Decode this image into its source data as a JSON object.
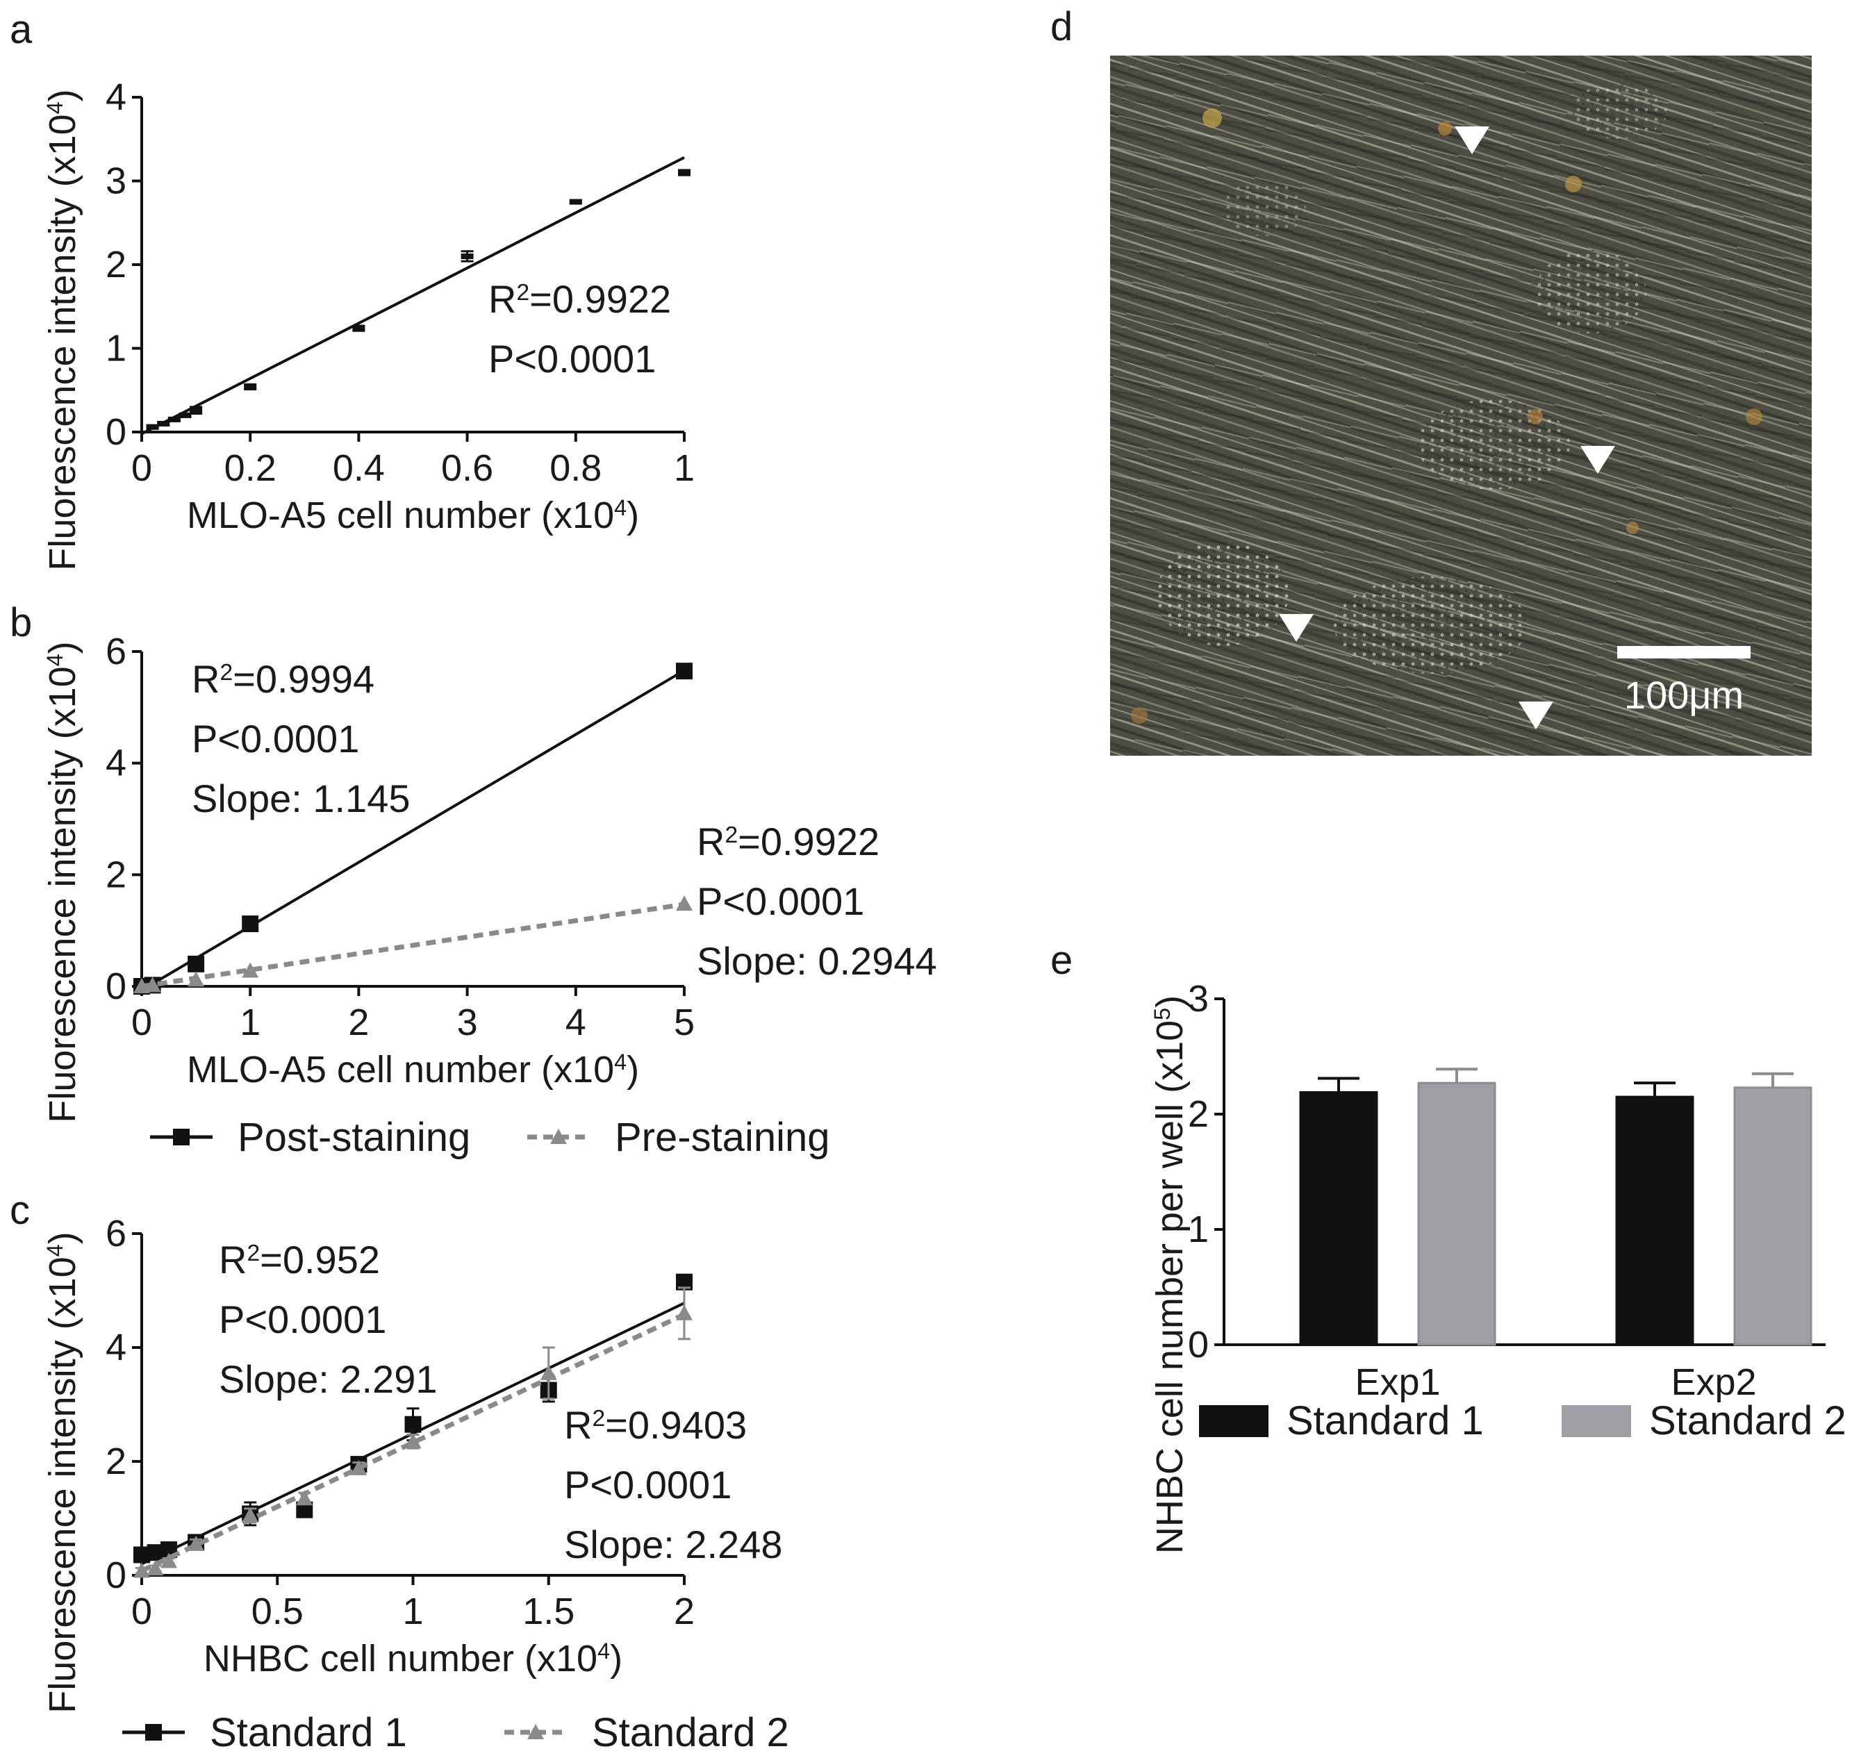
{
  "panels": {
    "a": {
      "letter": "a"
    },
    "b": {
      "letter": "b"
    },
    "c": {
      "letter": "c"
    },
    "d": {
      "letter": "d",
      "scale_bar_label": "100μm"
    },
    "e": {
      "letter": "e"
    }
  },
  "colors": {
    "black": "#111111",
    "gray_line": "#8a8a8a",
    "gray_bar": "#a09ea2",
    "micrograph_base": "#5a5a4e"
  },
  "chart_data": [
    {
      "panel": "a",
      "type": "scatter",
      "xlabel": "MLO-A5 cell number (x10^4)",
      "ylabel": "Fluorescence intensity (x10^4)",
      "xlim": [
        0,
        1
      ],
      "ylim": [
        0,
        4
      ],
      "xticks": [
        "0",
        "0.2",
        "0.4",
        "0.6",
        "0.8",
        "1"
      ],
      "yticks": [
        "0",
        "1",
        "2",
        "3",
        "4"
      ],
      "series": [
        {
          "marker": "dash",
          "x": [
            0.02,
            0.04,
            0.06,
            0.08,
            0.1,
            0.2,
            0.4,
            0.6,
            0.8,
            1.0
          ],
          "y": [
            0.06,
            0.1,
            0.15,
            0.2,
            0.26,
            0.54,
            1.24,
            2.1,
            2.75,
            3.1
          ],
          "error": [
            0.02,
            0.02,
            0.02,
            0.02,
            0.04,
            0.03,
            0.03,
            0.06,
            0.02,
            0.03
          ],
          "fit": {
            "x": [
              0,
              1
            ],
            "y": [
              -0.02,
              3.28
            ]
          }
        }
      ],
      "annotations": [
        {
          "r2": "=0.9922",
          "p": "P<0.0001"
        }
      ]
    },
    {
      "panel": "b",
      "type": "line",
      "xlabel": "MLO-A5 cell number (x10^4)",
      "ylabel": "Fluorescence intensity (x10^4)",
      "xlim": [
        0,
        5
      ],
      "ylim": [
        0,
        6
      ],
      "xticks": [
        "0",
        "1",
        "2",
        "3",
        "4",
        "5"
      ],
      "yticks": [
        "0",
        "2",
        "4",
        "6"
      ],
      "series": [
        {
          "name": "Post-staining",
          "marker": "square",
          "x": [
            0,
            0.1,
            0.5,
            1,
            5
          ],
          "y": [
            0.0,
            0.02,
            0.4,
            1.12,
            5.65
          ],
          "fit": {
            "x": [
              0,
              5
            ],
            "y": [
              -0.07,
              5.66
            ]
          }
        },
        {
          "name": "Pre-staining",
          "marker": "triangle",
          "x": [
            0,
            0.1,
            0.5,
            1,
            5
          ],
          "y": [
            0.0,
            0.02,
            0.12,
            0.28,
            1.48
          ],
          "fit": {
            "x": [
              0,
              5
            ],
            "y": [
              0.0,
              1.47
            ]
          }
        }
      ],
      "annotations": [
        {
          "r2": "=0.9994",
          "p": "P<0.0001",
          "slope": "Slope: 1.145"
        },
        {
          "r2": "=0.9922",
          "p": "P<0.0001",
          "slope": "Slope: 0.2944"
        }
      ]
    },
    {
      "panel": "c",
      "type": "line",
      "xlabel": "NHBC cell number (x10^4)",
      "ylabel": "Fluorescence intensity (x10^4)",
      "xlim": [
        0,
        2
      ],
      "ylim": [
        0,
        6
      ],
      "xticks": [
        "0",
        "0.5",
        "1",
        "1.5",
        "2"
      ],
      "yticks": [
        "0",
        "2",
        "4",
        "6"
      ],
      "series": [
        {
          "name": "Standard 1",
          "marker": "square",
          "x": [
            0,
            0.05,
            0.1,
            0.2,
            0.4,
            0.6,
            0.8,
            1.0,
            1.5,
            2.0
          ],
          "y": [
            0.36,
            0.4,
            0.45,
            0.58,
            1.08,
            1.15,
            1.95,
            2.65,
            3.25,
            5.15
          ],
          "error": [
            0.08,
            0.08,
            0.08,
            0.08,
            0.2,
            0.08,
            0.12,
            0.28,
            0.2,
            0.12
          ],
          "fit": {
            "x": [
              0,
              2
            ],
            "y": [
              0.2,
              4.78
            ]
          }
        },
        {
          "name": "Standard 2",
          "marker": "triangle",
          "x": [
            0,
            0.05,
            0.1,
            0.2,
            0.4,
            0.6,
            0.8,
            1.0,
            1.5,
            2.0
          ],
          "y": [
            0.08,
            0.12,
            0.25,
            0.55,
            1.05,
            1.35,
            1.88,
            2.35,
            3.55,
            4.6
          ],
          "error": [
            0.05,
            0.05,
            0.05,
            0.08,
            0.12,
            0.1,
            0.1,
            0.12,
            0.45,
            0.45
          ],
          "fit": {
            "x": [
              0,
              2
            ],
            "y": [
              0.08,
              4.58
            ]
          }
        }
      ],
      "annotations": [
        {
          "r2": "=0.952",
          "p": "P<0.0001",
          "slope": "Slope: 2.291"
        },
        {
          "r2": "=0.9403",
          "p": "P<0.0001",
          "slope": "Slope: 2.248"
        }
      ]
    },
    {
      "panel": "e",
      "type": "bar",
      "ylabel": "NHBC cell number per well (x10^5)",
      "categories": [
        "Exp1",
        "Exp2"
      ],
      "ylim": [
        0,
        3
      ],
      "yticks": [
        "0",
        "1",
        "2",
        "3"
      ],
      "series": [
        {
          "name": "Standard 1",
          "values": [
            2.19,
            2.15
          ],
          "error": [
            0.12,
            0.12
          ]
        },
        {
          "name": "Standard 2",
          "values": [
            2.27,
            2.23
          ],
          "error": [
            0.12,
            0.12
          ]
        }
      ]
    }
  ]
}
